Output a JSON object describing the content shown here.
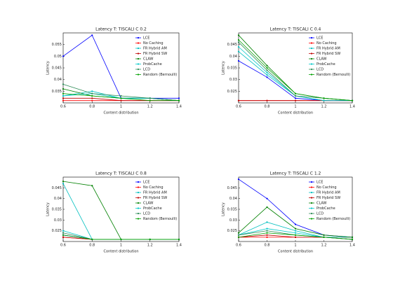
{
  "chart_data": [
    {
      "type": "line",
      "title": "Latency T: TISCALI C 0.2",
      "x_label": "Content distribution",
      "y_label": "Latency",
      "x": [
        0.6,
        0.8,
        1.0,
        1.2,
        1.4
      ],
      "xlim": [
        0.6,
        1.4
      ],
      "xticks": [
        0.6,
        0.8,
        1.0,
        1.2,
        1.4
      ],
      "ylim": [
        0.03,
        0.06
      ],
      "yticks": [
        0.035,
        0.04,
        0.045,
        0.05,
        0.055
      ],
      "legend": "upper right",
      "series": [
        {
          "name": "LCE",
          "color": "#0000ff",
          "values": [
            0.05,
            0.059,
            0.032,
            0.032,
            0.032
          ]
        },
        {
          "name": "No Caching",
          "color": "#ff0000",
          "values": [
            0.031,
            0.031,
            0.031,
            0.031,
            0.031
          ]
        },
        {
          "name": "FR Hybrid AM",
          "color": "#00bfbf",
          "values": [
            0.033,
            0.035,
            0.032,
            0.032,
            0.031
          ]
        },
        {
          "name": "FR Hybrid SW",
          "color": "#bf0000",
          "values": [
            0.032,
            0.032,
            0.031,
            0.031,
            0.031
          ]
        },
        {
          "name": "CLAW",
          "color": "#008000",
          "values": [
            0.036,
            0.033,
            0.032,
            0.032,
            0.031
          ]
        },
        {
          "name": "ProbCache",
          "color": "#00c8c8",
          "values": [
            0.033,
            0.034,
            0.032,
            0.032,
            0.031
          ]
        },
        {
          "name": "LCD",
          "color": "#2e8b57",
          "values": [
            0.038,
            0.034,
            0.033,
            0.032,
            0.031
          ]
        },
        {
          "name": "Random (Bernoulli)",
          "color": "#00a000",
          "values": [
            0.034,
            0.033,
            0.032,
            0.031,
            0.031
          ]
        }
      ]
    },
    {
      "type": "line",
      "title": "Latency T: TISCALI C 0.4",
      "x_label": "Content distribution",
      "y_label": "Latency",
      "x": [
        0.6,
        0.8,
        1.0,
        1.2,
        1.4
      ],
      "xlim": [
        0.6,
        1.4
      ],
      "xticks": [
        0.6,
        0.8,
        1.0,
        1.2,
        1.4
      ],
      "ylim": [
        0.02,
        0.05
      ],
      "yticks": [
        0.025,
        0.03,
        0.035,
        0.04,
        0.045
      ],
      "legend": "upper right",
      "series": [
        {
          "name": "LCE",
          "color": "#0000ff",
          "values": [
            0.038,
            0.031,
            0.022,
            0.021,
            0.021
          ]
        },
        {
          "name": "No Caching",
          "color": "#ff0000",
          "values": [
            0.021,
            0.021,
            0.021,
            0.021,
            0.021
          ]
        },
        {
          "name": "FR Hybrid AM",
          "color": "#00bfbf",
          "values": [
            0.042,
            0.032,
            0.023,
            0.021,
            0.021
          ]
        },
        {
          "name": "FR Hybrid SW",
          "color": "#bf0000",
          "values": [
            0.021,
            0.021,
            0.021,
            0.021,
            0.021
          ]
        },
        {
          "name": "CLAW",
          "color": "#008000",
          "values": [
            0.049,
            0.036,
            0.024,
            0.022,
            0.021
          ]
        },
        {
          "name": "ProbCache",
          "color": "#00c8c8",
          "values": [
            0.044,
            0.033,
            0.023,
            0.021,
            0.021
          ]
        },
        {
          "name": "LCD",
          "color": "#2e8b57",
          "values": [
            0.046,
            0.034,
            0.023,
            0.022,
            0.021
          ]
        },
        {
          "name": "Random (Bernoulli)",
          "color": "#00a000",
          "values": [
            0.047,
            0.035,
            0.024,
            0.022,
            0.021
          ]
        }
      ]
    },
    {
      "type": "line",
      "title": "Latency T: TISCALI C 0.8",
      "x_label": "Content distribution",
      "y_label": "Latency",
      "x": [
        0.6,
        0.8,
        1.0,
        1.2,
        1.4
      ],
      "xlim": [
        0.6,
        1.4
      ],
      "xticks": [
        0.6,
        0.8,
        1.0,
        1.2,
        1.4
      ],
      "ylim": [
        0.02,
        0.05
      ],
      "yticks": [
        0.025,
        0.03,
        0.035,
        0.04,
        0.045
      ],
      "legend": "upper right",
      "series": [
        {
          "name": "LCE",
          "color": "#0000ff",
          "values": [
            0.023,
            0.021,
            0.021,
            0.021,
            0.021
          ]
        },
        {
          "name": "No Caching",
          "color": "#ff0000",
          "values": [
            0.022,
            0.021,
            0.021,
            0.021,
            0.021
          ]
        },
        {
          "name": "FR Hybrid AM",
          "color": "#00bfbf",
          "values": [
            0.047,
            0.021,
            0.021,
            0.021,
            0.021
          ]
        },
        {
          "name": "FR Hybrid SW",
          "color": "#bf0000",
          "values": [
            0.022,
            0.021,
            0.021,
            0.021,
            0.021
          ]
        },
        {
          "name": "CLAW",
          "color": "#008000",
          "values": [
            0.048,
            0.046,
            0.021,
            0.021,
            0.021
          ]
        },
        {
          "name": "ProbCache",
          "color": "#00c8c8",
          "values": [
            0.025,
            0.021,
            0.021,
            0.021,
            0.021
          ]
        },
        {
          "name": "LCD",
          "color": "#2e8b57",
          "values": [
            0.024,
            0.021,
            0.021,
            0.021,
            0.021
          ]
        },
        {
          "name": "Random (Bernoulli)",
          "color": "#00a000",
          "values": [
            0.023,
            0.021,
            0.021,
            0.021,
            0.021
          ]
        }
      ]
    },
    {
      "type": "line",
      "title": "Latency T: TISCALI C 1.2",
      "x_label": "Content distribution",
      "y_label": "Latency",
      "x": [
        0.6,
        0.8,
        1.0,
        1.2,
        1.4
      ],
      "xlim": [
        0.6,
        1.4
      ],
      "xticks": [
        0.6,
        0.8,
        1.0,
        1.2,
        1.4
      ],
      "ylim": [
        0.02,
        0.05
      ],
      "yticks": [
        0.025,
        0.03,
        0.035,
        0.04,
        0.045
      ],
      "legend": "upper right",
      "series": [
        {
          "name": "LCE",
          "color": "#0000ff",
          "values": [
            0.049,
            0.04,
            0.028,
            0.023,
            0.022
          ]
        },
        {
          "name": "No Caching",
          "color": "#ff0000",
          "values": [
            0.022,
            0.022,
            0.022,
            0.022,
            0.022
          ]
        },
        {
          "name": "FR Hybrid AM",
          "color": "#00bfbf",
          "values": [
            0.023,
            0.029,
            0.025,
            0.022,
            0.022
          ]
        },
        {
          "name": "FR Hybrid SW",
          "color": "#bf0000",
          "values": [
            0.022,
            0.023,
            0.022,
            0.022,
            0.021
          ]
        },
        {
          "name": "CLAW",
          "color": "#008000",
          "values": [
            0.024,
            0.036,
            0.026,
            0.023,
            0.022
          ]
        },
        {
          "name": "ProbCache",
          "color": "#00c8c8",
          "values": [
            0.023,
            0.026,
            0.024,
            0.022,
            0.021
          ]
        },
        {
          "name": "LCD",
          "color": "#2e8b57",
          "values": [
            0.023,
            0.025,
            0.023,
            0.022,
            0.021
          ]
        },
        {
          "name": "Random (Bernoulli)",
          "color": "#00a000",
          "values": [
            0.022,
            0.024,
            0.023,
            0.022,
            0.021
          ]
        }
      ]
    }
  ]
}
